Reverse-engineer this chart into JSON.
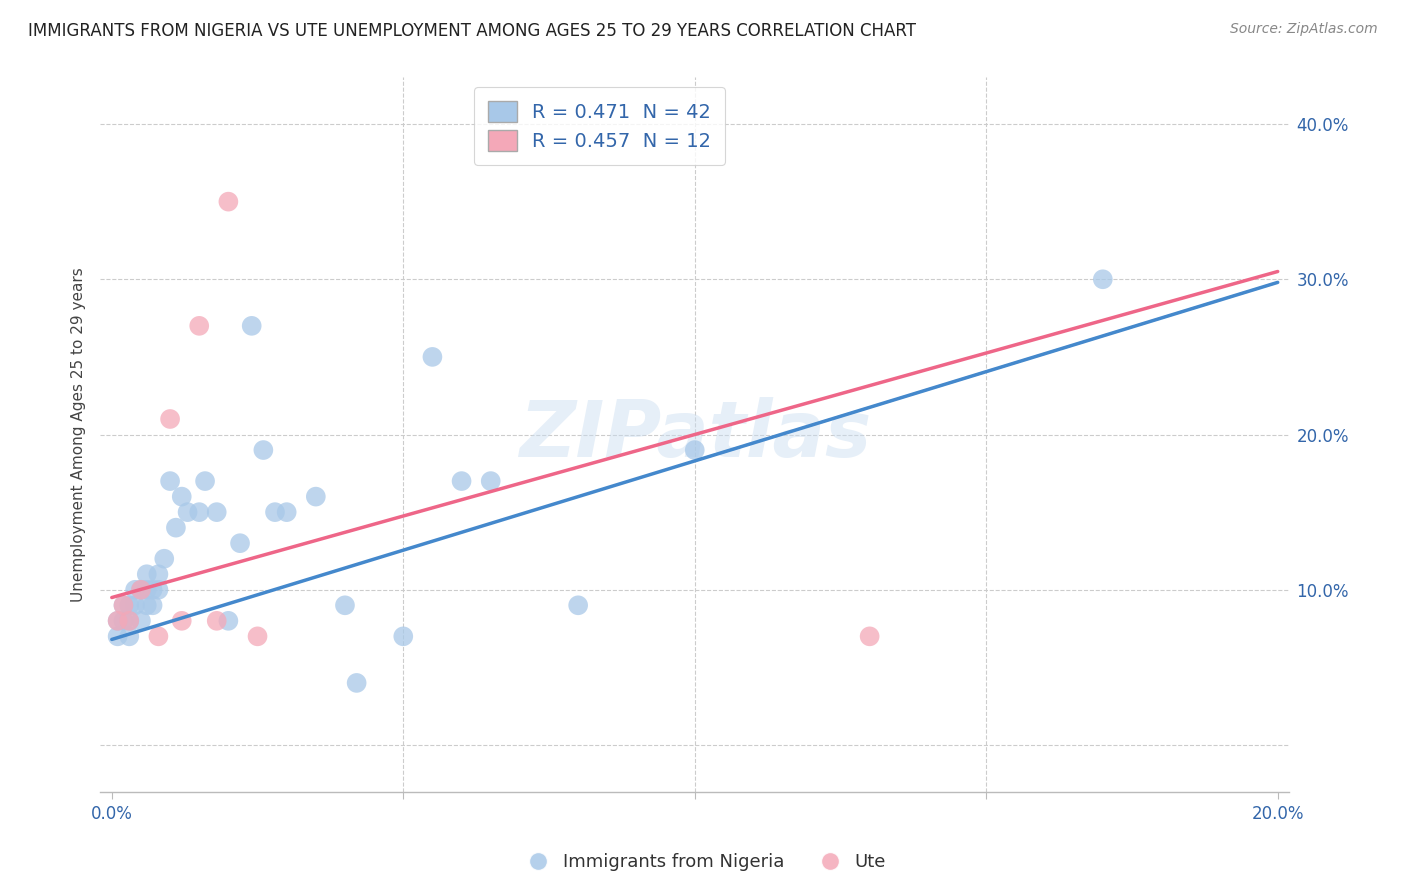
{
  "title": "IMMIGRANTS FROM NIGERIA VS UTE UNEMPLOYMENT AMONG AGES 25 TO 29 YEARS CORRELATION CHART",
  "source": "Source: ZipAtlas.com",
  "xlabel_ticks": [
    "0.0%",
    "",
    "",
    "",
    "20.0%"
  ],
  "xlabel_vals": [
    0.0,
    0.05,
    0.1,
    0.15,
    0.2
  ],
  "ylabel_ticks": [
    "",
    "10.0%",
    "20.0%",
    "30.0%",
    "40.0%"
  ],
  "ylabel_vals": [
    0.0,
    0.1,
    0.2,
    0.3,
    0.4
  ],
  "ylabel_label": "Unemployment Among Ages 25 to 29 years",
  "legend_labels": [
    "Immigrants from Nigeria",
    "Ute"
  ],
  "blue_R": "0.471",
  "blue_N": "42",
  "pink_R": "0.457",
  "pink_N": "12",
  "blue_color": "#A8C8E8",
  "pink_color": "#F4A8B8",
  "blue_line_color": "#4488CC",
  "pink_line_color": "#EE6688",
  "blue_line_intercept": 0.068,
  "blue_line_slope": 1.15,
  "pink_line_intercept": 0.095,
  "pink_line_slope": 1.05,
  "blue_dashed_intercept": 0.068,
  "blue_dashed_slope": 1.15,
  "watermark": "ZIPatlas",
  "blue_scatter_x": [
    0.001,
    0.001,
    0.002,
    0.002,
    0.003,
    0.003,
    0.003,
    0.004,
    0.004,
    0.005,
    0.005,
    0.006,
    0.006,
    0.006,
    0.007,
    0.007,
    0.008,
    0.008,
    0.009,
    0.01,
    0.011,
    0.012,
    0.013,
    0.015,
    0.016,
    0.018,
    0.02,
    0.022,
    0.024,
    0.026,
    0.028,
    0.03,
    0.035,
    0.04,
    0.042,
    0.05,
    0.055,
    0.06,
    0.065,
    0.08,
    0.1,
    0.17
  ],
  "blue_scatter_y": [
    0.07,
    0.08,
    0.08,
    0.09,
    0.07,
    0.08,
    0.09,
    0.09,
    0.1,
    0.08,
    0.1,
    0.09,
    0.1,
    0.11,
    0.09,
    0.1,
    0.1,
    0.11,
    0.12,
    0.17,
    0.14,
    0.16,
    0.15,
    0.15,
    0.17,
    0.15,
    0.08,
    0.13,
    0.27,
    0.19,
    0.15,
    0.15,
    0.16,
    0.09,
    0.04,
    0.07,
    0.25,
    0.17,
    0.17,
    0.09,
    0.19,
    0.3
  ],
  "pink_scatter_x": [
    0.001,
    0.002,
    0.003,
    0.005,
    0.008,
    0.01,
    0.012,
    0.015,
    0.018,
    0.02,
    0.025,
    0.13
  ],
  "pink_scatter_y": [
    0.08,
    0.09,
    0.08,
    0.1,
    0.07,
    0.21,
    0.08,
    0.27,
    0.08,
    0.35,
    0.07,
    0.07
  ]
}
